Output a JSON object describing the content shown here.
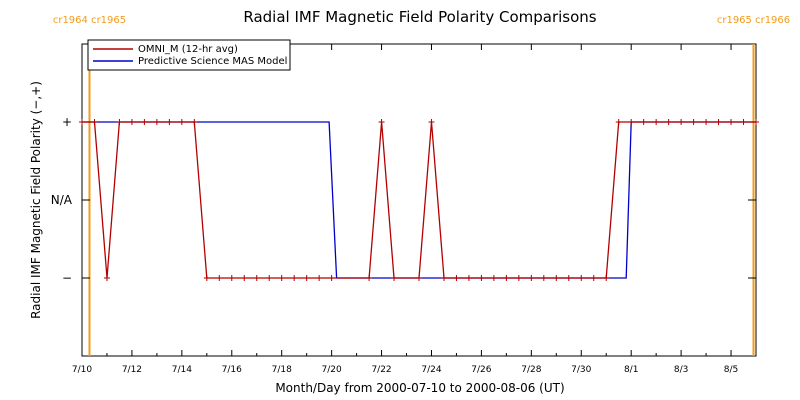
{
  "chart_data": {
    "type": "line",
    "title": "Radial IMF Magnetic Field Polarity Comparisons",
    "xlabel": "Month/Day from 2000-07-10 to 2000-08-06 (UT)",
    "ylabel": "Radial IMF Magnetic Field Polarity (−,+)",
    "x_range_days_from_start": [
      0,
      27
    ],
    "x_start_date": "2000-07-10",
    "x_tick_labels": [
      "7/10",
      "7/12",
      "7/14",
      "7/16",
      "7/18",
      "7/20",
      "7/22",
      "7/24",
      "7/26",
      "7/28",
      "7/30",
      "8/1",
      "8/3",
      "8/5"
    ],
    "y_ticks": [
      {
        "value": 1,
        "label": "+"
      },
      {
        "value": 0,
        "label": "N/A"
      },
      {
        "value": -1,
        "label": "−"
      }
    ],
    "ylim": [
      -2,
      2
    ],
    "carrington_markers": [
      {
        "day": 0.3,
        "labels": [
          "cr1964",
          "cr1965"
        ]
      },
      {
        "day": 26.9,
        "labels": [
          "cr1965",
          "cr1966"
        ]
      }
    ],
    "series": [
      {
        "name": "OMNI_M (12-hr avg)",
        "color": "#b30000",
        "markers": true,
        "points": [
          [
            0.0,
            1
          ],
          [
            0.5,
            1
          ],
          [
            1.0,
            -1
          ],
          [
            1.5,
            1
          ],
          [
            2.0,
            1
          ],
          [
            2.5,
            1
          ],
          [
            3.0,
            1
          ],
          [
            3.5,
            1
          ],
          [
            4.0,
            1
          ],
          [
            4.5,
            1
          ],
          [
            5.0,
            -1
          ],
          [
            5.5,
            -1
          ],
          [
            6.0,
            -1
          ],
          [
            6.5,
            -1
          ],
          [
            7.0,
            -1
          ],
          [
            7.5,
            -1
          ],
          [
            8.0,
            -1
          ],
          [
            8.5,
            -1
          ],
          [
            9.0,
            -1
          ],
          [
            9.5,
            -1
          ],
          [
            10.0,
            -1
          ],
          [
            11.5,
            -1
          ],
          [
            12.0,
            1
          ],
          [
            12.5,
            -1
          ],
          [
            13.5,
            -1
          ],
          [
            14.0,
            1
          ],
          [
            14.5,
            -1
          ],
          [
            15.0,
            -1
          ],
          [
            15.5,
            -1
          ],
          [
            16.0,
            -1
          ],
          [
            16.5,
            -1
          ],
          [
            17.0,
            -1
          ],
          [
            17.5,
            -1
          ],
          [
            18.0,
            -1
          ],
          [
            18.5,
            -1
          ],
          [
            19.0,
            -1
          ],
          [
            19.5,
            -1
          ],
          [
            20.0,
            -1
          ],
          [
            20.5,
            -1
          ],
          [
            21.0,
            -1
          ],
          [
            21.5,
            1
          ],
          [
            22.0,
            1
          ],
          [
            22.5,
            1
          ],
          [
            23.0,
            1
          ],
          [
            23.5,
            1
          ],
          [
            24.0,
            1
          ],
          [
            24.5,
            1
          ],
          [
            25.0,
            1
          ],
          [
            25.5,
            1
          ],
          [
            26.0,
            1
          ],
          [
            26.5,
            1
          ],
          [
            27.0,
            1
          ]
        ]
      },
      {
        "name": "Predictive Science MAS Model",
        "color": "#0000cc",
        "markers": false,
        "points": [
          [
            0.0,
            1
          ],
          [
            9.9,
            1
          ],
          [
            10.2,
            -1
          ],
          [
            21.8,
            -1
          ],
          [
            22.0,
            1
          ],
          [
            27.0,
            1
          ]
        ]
      }
    ],
    "grid": false,
    "legend_position": "top-left"
  },
  "colors": {
    "carrington_line": "#f39c1a",
    "axes": "#000000",
    "omni": "#b30000",
    "model": "#0000cc"
  }
}
